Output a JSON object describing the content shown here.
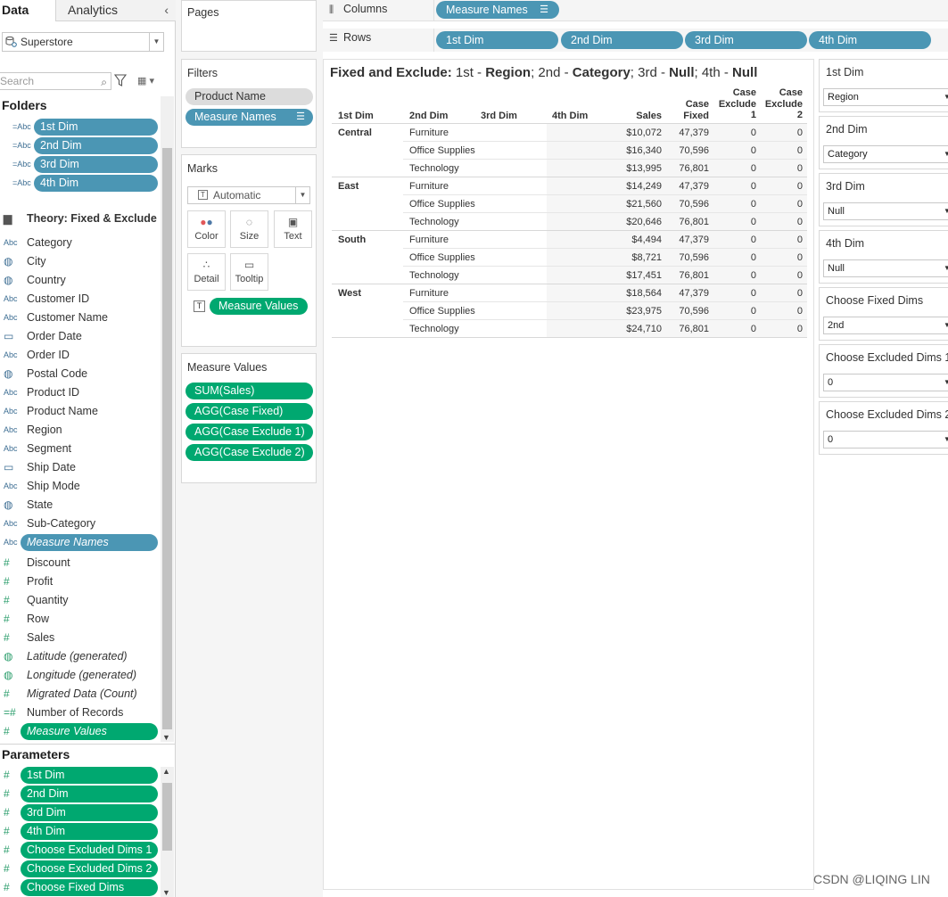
{
  "tabs": {
    "data": "Data",
    "analytics": "Analytics"
  },
  "datasource": {
    "name": "Superstore"
  },
  "search": {
    "placeholder": "Search"
  },
  "folders": {
    "title": "Folders",
    "items": [
      "1st Dim",
      "2nd Dim",
      "3rd Dim",
      "4th Dim"
    ],
    "type_label": "=Abc"
  },
  "theory_folder": {
    "title": "Theory: Fixed & Exclude"
  },
  "dimensions": [
    {
      "type": "Abc",
      "label": "Category"
    },
    {
      "type": "globe",
      "label": "City"
    },
    {
      "type": "globe",
      "label": "Country"
    },
    {
      "type": "Abc",
      "label": "Customer ID"
    },
    {
      "type": "Abc",
      "label": "Customer Name"
    },
    {
      "type": "date",
      "label": "Order Date"
    },
    {
      "type": "Abc",
      "label": "Order ID"
    },
    {
      "type": "globe",
      "label": "Postal Code"
    },
    {
      "type": "Abc",
      "label": "Product ID"
    },
    {
      "type": "Abc",
      "label": "Product Name"
    },
    {
      "type": "Abc",
      "label": "Region"
    },
    {
      "type": "Abc",
      "label": "Segment"
    },
    {
      "type": "date",
      "label": "Ship Date"
    },
    {
      "type": "Abc",
      "label": "Ship Mode"
    },
    {
      "type": "globe",
      "label": "State"
    },
    {
      "type": "Abc",
      "label": "Sub-Category"
    }
  ],
  "measure_names_field": "Measure Names",
  "measures": [
    {
      "type": "#",
      "label": "Discount",
      "italic": false
    },
    {
      "type": "#",
      "label": "Profit",
      "italic": false
    },
    {
      "type": "#",
      "label": "Quantity",
      "italic": false
    },
    {
      "type": "#",
      "label": "Row",
      "italic": false
    },
    {
      "type": "#",
      "label": "Sales",
      "italic": false
    },
    {
      "type": "globe",
      "label": "Latitude (generated)",
      "italic": true
    },
    {
      "type": "globe",
      "label": "Longitude (generated)",
      "italic": true
    },
    {
      "type": "#",
      "label": "Migrated Data (Count)",
      "italic": true
    },
    {
      "type": "=#",
      "label": "Number of Records",
      "italic": false
    }
  ],
  "measure_values_field": "Measure Values",
  "parameters": {
    "title": "Parameters",
    "items": [
      "1st Dim",
      "2nd Dim",
      "3rd Dim",
      "4th Dim",
      "Choose Excluded Dims 1",
      "Choose Excluded Dims 2",
      "Choose Fixed Dims"
    ]
  },
  "pages": {
    "title": "Pages"
  },
  "filters": {
    "title": "Filters",
    "items": [
      "Product Name",
      "Measure Names"
    ]
  },
  "marks": {
    "title": "Marks",
    "type": "Automatic",
    "buttons": [
      "Color",
      "Size",
      "Text",
      "Detail",
      "Tooltip"
    ],
    "text_pill": "Measure Values"
  },
  "measure_values_card": {
    "title": "Measure Values",
    "items": [
      "SUM(Sales)",
      "AGG(Case Fixed)",
      "AGG(Case Exclude 1)",
      "AGG(Case Exclude 2)"
    ]
  },
  "columns_shelf": {
    "label": "Columns",
    "pills": [
      "Measure Names"
    ]
  },
  "rows_shelf": {
    "label": "Rows",
    "pills": [
      "1st Dim",
      "2nd Dim",
      "3rd Dim",
      "4th Dim"
    ]
  },
  "view": {
    "title_parts": [
      {
        "t": "Fixed and Exclude: ",
        "b": true
      },
      {
        "t": "1st - ",
        "b": false
      },
      {
        "t": "Region",
        "b": true
      },
      {
        "t": "; 2nd - ",
        "b": false
      },
      {
        "t": "Category",
        "b": true
      },
      {
        "t": "; 3rd - ",
        "b": false
      },
      {
        "t": "Null",
        "b": true
      },
      {
        "t": "; 4th - ",
        "b": false
      },
      {
        "t": "Null",
        "b": true
      }
    ],
    "headers": {
      "dim1": "1st Dim",
      "dim2": "2nd Dim",
      "dim3": "3rd Dim",
      "dim4": "4th Dim",
      "sales": "Sales",
      "case_fixed": [
        "Case",
        "Fixed"
      ],
      "case_exclude_1": [
        "Case",
        "Exclude",
        "1"
      ],
      "case_exclude_2": [
        "Case",
        "Exclude",
        "2"
      ]
    },
    "groups": [
      {
        "region": "Central",
        "rows": [
          {
            "category": "Furniture",
            "sales": "$10,072",
            "fixed": "47,379",
            "ex1": "0",
            "ex2": "0"
          },
          {
            "category": "Office Supplies",
            "sales": "$16,340",
            "fixed": "70,596",
            "ex1": "0",
            "ex2": "0"
          },
          {
            "category": "Technology",
            "sales": "$13,995",
            "fixed": "76,801",
            "ex1": "0",
            "ex2": "0"
          }
        ]
      },
      {
        "region": "East",
        "rows": [
          {
            "category": "Furniture",
            "sales": "$14,249",
            "fixed": "47,379",
            "ex1": "0",
            "ex2": "0"
          },
          {
            "category": "Office Supplies",
            "sales": "$21,560",
            "fixed": "70,596",
            "ex1": "0",
            "ex2": "0"
          },
          {
            "category": "Technology",
            "sales": "$20,646",
            "fixed": "76,801",
            "ex1": "0",
            "ex2": "0"
          }
        ]
      },
      {
        "region": "South",
        "rows": [
          {
            "category": "Furniture",
            "sales": "$4,494",
            "fixed": "47,379",
            "ex1": "0",
            "ex2": "0"
          },
          {
            "category": "Office Supplies",
            "sales": "$8,721",
            "fixed": "70,596",
            "ex1": "0",
            "ex2": "0"
          },
          {
            "category": "Technology",
            "sales": "$17,451",
            "fixed": "76,801",
            "ex1": "0",
            "ex2": "0"
          }
        ]
      },
      {
        "region": "West",
        "rows": [
          {
            "category": "Furniture",
            "sales": "$18,564",
            "fixed": "47,379",
            "ex1": "0",
            "ex2": "0"
          },
          {
            "category": "Office Supplies",
            "sales": "$23,975",
            "fixed": "70,596",
            "ex1": "0",
            "ex2": "0"
          },
          {
            "category": "Technology",
            "sales": "$24,710",
            "fixed": "76,801",
            "ex1": "0",
            "ex2": "0"
          }
        ]
      }
    ]
  },
  "parameter_controls": [
    {
      "title": "1st Dim",
      "value": "Region"
    },
    {
      "title": "2nd Dim",
      "value": "Category"
    },
    {
      "title": "3rd Dim",
      "value": "Null"
    },
    {
      "title": "4th Dim",
      "value": "Null"
    },
    {
      "title": "Choose Fixed Dims",
      "value": "2nd"
    },
    {
      "title": "Choose Excluded Dims 1",
      "value": "0"
    },
    {
      "title": "Choose Excluded Dims 2",
      "value": "0"
    }
  ],
  "watermark": "CSDN @LIQING LIN",
  "colors": {
    "dimension_pill": "#4b96b4",
    "measure_pill": "#00a870"
  }
}
